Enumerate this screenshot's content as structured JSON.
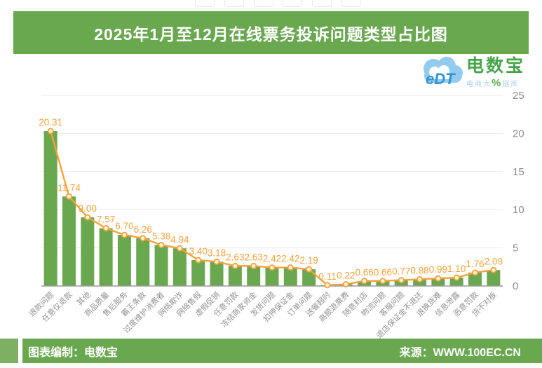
{
  "page": {
    "title": "2025年1月至12月在线票务投诉问题类型占比图",
    "footer_left": "图表编制：电数宝",
    "footer_right": "来源：WWW.100EC.CN"
  },
  "logo": {
    "mark": "eDT",
    "name": "电数宝",
    "sub_left": "电商大",
    "sub_pct": "%",
    "sub_right": "据库"
  },
  "colors": {
    "green": "#69a84f",
    "bar_green": "#6aa850",
    "orange": "#f7a138",
    "grid": "#e9e9e9",
    "axis": "#9b9b9b",
    "tick_label": "#8c8c8c",
    "category_label": "#929292"
  },
  "chart_data": {
    "type": "bar",
    "overlay": "line",
    "title": "2025年1月至12月在线票务投诉问题类型占比图",
    "categories": [
      "退款问题",
      "任意仅退款",
      "其他",
      "商品质量",
      "售后服务",
      "霸王条款",
      "过度维护消费者",
      "网络欺诈",
      "网络售假",
      "虚假促销",
      "任意罚款",
      "冻结商家资金",
      "发货问题",
      "扣押保证金",
      "订单问题",
      "送餐超时",
      "高额退票费",
      "随意封店",
      "物流问题",
      "客服问题",
      "退店保证金不退还",
      "退换货难",
      "信息泄露",
      "恶意罚款",
      "货不对板"
    ],
    "values": [
      20.31,
      11.74,
      9.0,
      7.57,
      6.7,
      6.26,
      5.38,
      4.94,
      3.4,
      3.18,
      2.63,
      2.63,
      2.42,
      2.42,
      2.19,
      0.11,
      0.22,
      0.66,
      0.66,
      0.77,
      0.88,
      0.99,
      1.1,
      1.76,
      2.09
    ],
    "xlabel": "",
    "ylabel": "",
    "ylim": [
      0,
      25
    ],
    "yticks": [
      0,
      5,
      10,
      15,
      20,
      25
    ],
    "y_axis_side": "right",
    "grid": true,
    "legend": "none",
    "value_labels": "above-points"
  }
}
